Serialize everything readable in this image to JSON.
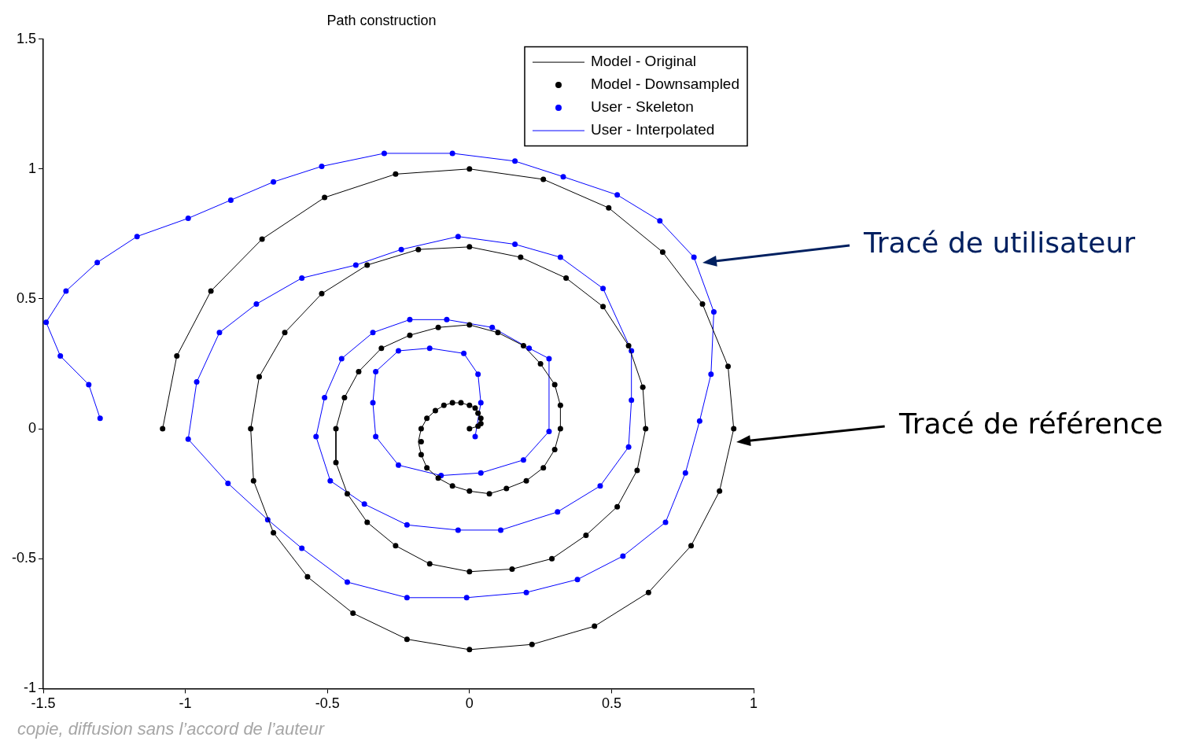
{
  "chart_data": {
    "type": "line",
    "title": "Path construction",
    "xlim": [
      -1.5,
      1
    ],
    "xticks": [
      -1.5,
      -1,
      -0.5,
      0,
      0.5,
      1
    ],
    "ylim": [
      -1,
      1.5
    ],
    "yticks": [
      -1,
      -0.5,
      0,
      0.5,
      1,
      1.5
    ],
    "grid": false,
    "legend": "top right",
    "annotations": [
      "Tracé de utilisateur",
      "Tracé de référence",
      "copie, diffusion sans l’accord de l’auteur"
    ],
    "series": [
      {
        "name": "Model - Original",
        "type": "line",
        "color": "#000000",
        "marker": "none",
        "line_style": "solid",
        "x": [
          0,
          0.03,
          0.04,
          0.04,
          0.03,
          0.02,
          0,
          -0.03,
          -0.06,
          -0.09,
          -0.12,
          -0.15,
          -0.17,
          -0.18,
          -0.17,
          -0.15,
          -0.11,
          -0.06,
          0,
          0.07,
          0.13,
          0.2,
          0.26,
          0.3,
          0.32,
          0.32,
          0.3,
          0.25,
          0.19,
          0.1,
          0,
          -0.11,
          -0.21,
          -0.31,
          -0.39,
          -0.44,
          -0.47,
          -0.47,
          -0.43,
          -0.36,
          -0.26,
          -0.14,
          0,
          0.15,
          0.29,
          0.41,
          0.52,
          0.59,
          0.62,
          0.61,
          0.56,
          0.47,
          0.34,
          0.18,
          0,
          -0.18,
          -0.36,
          -0.52,
          -0.65,
          -0.74,
          -0.77,
          -0.76,
          -0.69,
          -0.57,
          -0.41,
          -0.22,
          0,
          0.22,
          0.44,
          0.63,
          0.78,
          0.88,
          0.93,
          0.91,
          0.82,
          0.68,
          0.49,
          0.26,
          0,
          -0.26,
          -0.51,
          -0.73,
          -0.91,
          -1.03,
          -1.08
        ],
        "values": [
          0,
          0.01,
          0.02,
          0.04,
          0.06,
          0.08,
          0.09,
          0.1,
          0.1,
          0.09,
          0.07,
          0.04,
          0,
          -0.05,
          -0.1,
          -0.15,
          -0.19,
          -0.22,
          -0.24,
          -0.25,
          -0.23,
          -0.2,
          -0.15,
          -0.08,
          0,
          0.09,
          0.17,
          0.25,
          0.32,
          0.37,
          0.4,
          0.39,
          0.36,
          0.31,
          0.22,
          0.12,
          0,
          -0.13,
          -0.25,
          -0.36,
          -0.45,
          -0.52,
          -0.55,
          -0.54,
          -0.5,
          -0.41,
          -0.3,
          -0.16,
          0,
          0.16,
          0.32,
          0.47,
          0.58,
          0.66,
          0.7,
          0.69,
          0.63,
          0.52,
          0.37,
          0.2,
          0,
          -0.2,
          -0.4,
          -0.57,
          -0.71,
          -0.81,
          -0.85,
          -0.83,
          -0.76,
          -0.63,
          -0.45,
          -0.24,
          0,
          0.24,
          0.48,
          0.68,
          0.85,
          0.96,
          1,
          0.98,
          0.89,
          0.73,
          0.53,
          0.28,
          0
        ]
      },
      {
        "name": "Model - Downsampled",
        "type": "scatter",
        "color": "#000000",
        "marker": "circle",
        "x": [
          0,
          0.03,
          0.04,
          0.04,
          0.03,
          0.02,
          0,
          -0.03,
          -0.06,
          -0.09,
          -0.12,
          -0.15,
          -0.17,
          -0.17,
          -0.17,
          -0.15,
          -0.11,
          -0.06,
          0,
          0.07,
          0.13,
          0.2,
          0.26,
          0.3,
          0.32,
          0.32,
          0.3,
          0.25,
          0.19,
          0.1,
          0,
          -0.11,
          -0.21,
          -0.31,
          -0.39,
          -0.44,
          -0.47,
          -0.47,
          -0.43,
          -0.36,
          -0.26,
          -0.14,
          0,
          0.15,
          0.29,
          0.41,
          0.52,
          0.59,
          0.62,
          0.61,
          0.56,
          0.47,
          0.34,
          0.18,
          0,
          -0.18,
          -0.36,
          -0.52,
          -0.65,
          -0.74,
          -0.77,
          -0.76,
          -0.69,
          -0.57,
          -0.41,
          -0.22,
          0,
          0.22,
          0.44,
          0.63,
          0.78,
          0.88,
          0.93,
          0.91,
          0.82,
          0.68,
          0.49,
          0.26,
          0,
          -0.26,
          -0.51,
          -0.73,
          -0.91,
          -1.03,
          -1.08
        ],
        "values": [
          0,
          0.01,
          0.02,
          0.04,
          0.06,
          0.08,
          0.09,
          0.1,
          0.1,
          0.09,
          0.07,
          0.04,
          0,
          -0.05,
          -0.1,
          -0.15,
          -0.19,
          -0.22,
          -0.24,
          -0.25,
          -0.23,
          -0.2,
          -0.15,
          -0.08,
          0,
          0.09,
          0.17,
          0.25,
          0.32,
          0.37,
          0.4,
          0.39,
          0.36,
          0.31,
          0.22,
          0.12,
          0,
          -0.13,
          -0.25,
          -0.36,
          -0.45,
          -0.52,
          -0.55,
          -0.54,
          -0.5,
          -0.41,
          -0.3,
          -0.16,
          0,
          0.16,
          0.32,
          0.47,
          0.58,
          0.66,
          0.7,
          0.69,
          0.63,
          0.52,
          0.37,
          0.2,
          0,
          -0.2,
          -0.4,
          -0.57,
          -0.71,
          -0.81,
          -0.85,
          -0.83,
          -0.76,
          -0.63,
          -0.45,
          -0.24,
          0,
          0.24,
          0.48,
          0.68,
          0.85,
          0.96,
          1,
          0.98,
          0.89,
          0.73,
          0.53,
          0.28,
          0
        ]
      },
      {
        "name": "User - Skeleton",
        "type": "scatter",
        "color": "#0000ff",
        "marker": "circle",
        "x": [
          0.02,
          0.04,
          0.03,
          -0.02,
          -0.14,
          -0.25,
          -0.33,
          -0.34,
          -0.33,
          -0.25,
          -0.1,
          0.04,
          0.19,
          0.28,
          0.28,
          0.21,
          0.08,
          -0.08,
          -0.21,
          -0.34,
          -0.45,
          -0.51,
          -0.54,
          -0.49,
          -0.37,
          -0.22,
          -0.04,
          0.11,
          0.31,
          0.46,
          0.56,
          0.57,
          0.57,
          0.47,
          0.32,
          0.16,
          -0.04,
          -0.24,
          -0.4,
          -0.59,
          -0.75,
          -0.88,
          -0.96,
          -0.99,
          -0.85,
          -0.71,
          -0.59,
          -0.43,
          -0.22,
          -0.01,
          0.2,
          0.38,
          0.54,
          0.69,
          0.76,
          0.81,
          0.85,
          0.86,
          0.79,
          0.67,
          0.52,
          0.33,
          0.16,
          -0.06,
          -0.3,
          -0.52,
          -0.69,
          -0.84,
          -0.99,
          -1.17,
          -1.31,
          -1.42,
          -1.49,
          -1.44,
          -1.34,
          -1.3
        ],
        "values": [
          -0.03,
          0.1,
          0.21,
          0.29,
          0.31,
          0.3,
          0.22,
          0.1,
          -0.03,
          -0.14,
          -0.18,
          -0.17,
          -0.12,
          -0.01,
          0.27,
          0.31,
          0.39,
          0.42,
          0.42,
          0.37,
          0.27,
          0.12,
          -0.03,
          -0.2,
          -0.29,
          -0.37,
          -0.39,
          -0.39,
          -0.32,
          -0.22,
          -0.07,
          0.11,
          0.3,
          0.54,
          0.66,
          0.71,
          0.74,
          0.69,
          0.63,
          0.58,
          0.48,
          0.37,
          0.18,
          -0.04,
          -0.21,
          -0.35,
          -0.46,
          -0.59,
          -0.65,
          -0.65,
          -0.63,
          -0.58,
          -0.49,
          -0.36,
          -0.17,
          0.03,
          0.21,
          0.45,
          0.66,
          0.8,
          0.9,
          0.97,
          1.03,
          1.06,
          1.06,
          1.01,
          0.95,
          0.88,
          0.81,
          0.74,
          0.64,
          0.53,
          0.41,
          0.28,
          0.17,
          0.04
        ]
      },
      {
        "name": "User - Interpolated",
        "type": "line",
        "color": "#0000ff",
        "marker": "none",
        "line_style": "solid",
        "x": [
          0.02,
          0.04,
          0.03,
          -0.02,
          -0.14,
          -0.25,
          -0.33,
          -0.34,
          -0.33,
          -0.25,
          -0.1,
          0.04,
          0.19,
          0.28,
          0.28,
          0.21,
          0.08,
          -0.08,
          -0.21,
          -0.34,
          -0.45,
          -0.51,
          -0.54,
          -0.49,
          -0.37,
          -0.22,
          -0.04,
          0.11,
          0.31,
          0.46,
          0.56,
          0.57,
          0.57,
          0.47,
          0.32,
          0.16,
          -0.04,
          -0.24,
          -0.4,
          -0.59,
          -0.75,
          -0.88,
          -0.96,
          -0.99,
          -0.85,
          -0.71,
          -0.59,
          -0.43,
          -0.22,
          -0.01,
          0.2,
          0.38,
          0.54,
          0.69,
          0.76,
          0.81,
          0.85,
          0.86,
          0.79,
          0.67,
          0.52,
          0.33,
          0.16,
          -0.06,
          -0.3,
          -0.52,
          -0.69,
          -0.84,
          -0.99,
          -1.17,
          -1.31,
          -1.42,
          -1.49,
          -1.44,
          -1.34,
          -1.3
        ],
        "values": [
          -0.03,
          0.1,
          0.21,
          0.29,
          0.31,
          0.3,
          0.22,
          0.1,
          -0.03,
          -0.14,
          -0.18,
          -0.17,
          -0.12,
          -0.01,
          0.27,
          0.31,
          0.39,
          0.42,
          0.42,
          0.37,
          0.27,
          0.12,
          -0.03,
          -0.2,
          -0.29,
          -0.37,
          -0.39,
          -0.39,
          -0.32,
          -0.22,
          -0.07,
          0.11,
          0.3,
          0.54,
          0.66,
          0.71,
          0.74,
          0.69,
          0.63,
          0.58,
          0.48,
          0.37,
          0.18,
          -0.04,
          -0.21,
          -0.35,
          -0.46,
          -0.59,
          -0.65,
          -0.65,
          -0.63,
          -0.58,
          -0.49,
          -0.36,
          -0.17,
          0.03,
          0.21,
          0.45,
          0.66,
          0.8,
          0.9,
          0.97,
          1.03,
          1.06,
          1.06,
          1.01,
          0.95,
          0.88,
          0.81,
          0.74,
          0.64,
          0.53,
          0.41,
          0.28,
          0.17,
          0.04
        ]
      }
    ]
  }
}
